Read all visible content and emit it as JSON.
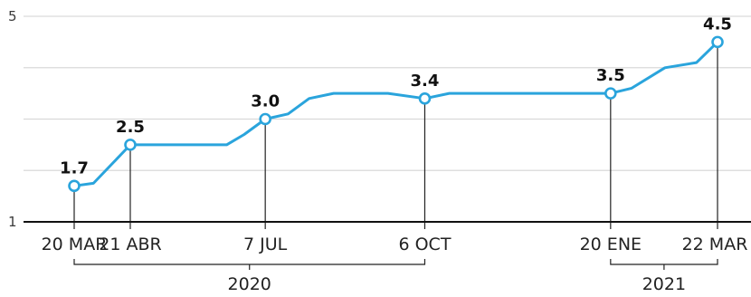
{
  "chart_data": {
    "type": "line",
    "y_tick_labels": [
      "5",
      "1"
    ],
    "ylim": [
      1,
      5
    ],
    "grid": true,
    "series": [
      {
        "color": "#2aa4dc",
        "points": [
          {
            "x": "2020-03-20",
            "y": 1.7
          },
          {
            "x": "2020-03-31",
            "y": 1.75
          },
          {
            "x": "2020-04-21",
            "y": 2.5
          },
          {
            "x": "2020-05-31",
            "y": 2.5
          },
          {
            "x": "2020-06-15",
            "y": 2.5
          },
          {
            "x": "2020-06-25",
            "y": 2.7
          },
          {
            "x": "2020-07-07",
            "y": 3.0
          },
          {
            "x": "2020-07-20",
            "y": 3.1
          },
          {
            "x": "2020-08-01",
            "y": 3.4
          },
          {
            "x": "2020-08-15",
            "y": 3.5
          },
          {
            "x": "2020-09-15",
            "y": 3.5
          },
          {
            "x": "2020-10-06",
            "y": 3.4
          },
          {
            "x": "2020-10-20",
            "y": 3.5
          },
          {
            "x": "2021-01-20",
            "y": 3.5
          },
          {
            "x": "2021-02-01",
            "y": 3.6
          },
          {
            "x": "2021-02-20",
            "y": 4.0
          },
          {
            "x": "2021-03-10",
            "y": 4.1
          },
          {
            "x": "2021-03-22",
            "y": 4.5
          }
        ]
      }
    ],
    "highlights": [
      {
        "x": "2020-03-20",
        "y": 1.7,
        "value_label": "1.7",
        "date_label": "20 MAR"
      },
      {
        "x": "2020-04-21",
        "y": 2.5,
        "value_label": "2.5",
        "date_label": "21 ABR"
      },
      {
        "x": "2020-07-07",
        "y": 3.0,
        "value_label": "3.0",
        "date_label": "7 JUL"
      },
      {
        "x": "2020-10-06",
        "y": 3.4,
        "value_label": "3.4",
        "date_label": "6 OCT"
      },
      {
        "x": "2021-01-20",
        "y": 3.5,
        "value_label": "3.5",
        "date_label": "20 ENE"
      },
      {
        "x": "2021-03-22",
        "y": 4.5,
        "value_label": "4.5",
        "date_label": "22 MAR"
      }
    ],
    "year_groups": [
      {
        "label": "2020",
        "from": "2020-03-20",
        "to": "2020-10-06"
      },
      {
        "label": "2021",
        "from": "2021-01-20",
        "to": "2021-03-22"
      }
    ],
    "colors": {
      "line": "#2aa4dc",
      "marker_fill": "#ffffff",
      "grid": "#d9d9d9",
      "axis": "#111111"
    }
  }
}
